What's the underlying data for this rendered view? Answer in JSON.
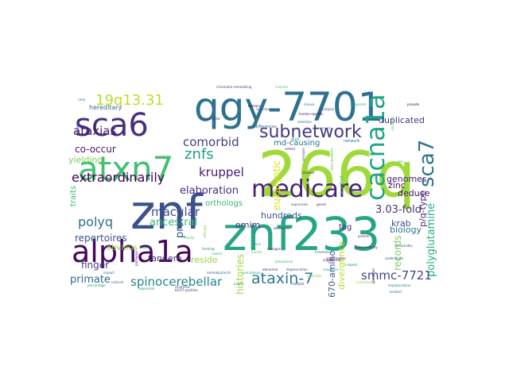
{
  "words": [
    {
      "text": "266q",
      "color": "#9fda3a",
      "rotate": 0
    },
    {
      "text": "znf",
      "color": "#3b518b",
      "rotate": 0
    },
    {
      "text": "znf233",
      "color": "#26a584",
      "rotate": 0
    },
    {
      "text": "qgy-7701",
      "color": "#2d718e",
      "rotate": 0
    },
    {
      "text": "atxn7",
      "color": "#43bf71",
      "rotate": 0
    },
    {
      "text": "alpha1a",
      "color": "#46075a",
      "rotate": 0
    },
    {
      "text": "sca6",
      "color": "#472f7d",
      "rotate": 0
    },
    {
      "text": "medicare",
      "color": "#482173",
      "rotate": 0
    },
    {
      "text": "cacna1a",
      "color": "#21a685",
      "rotate": 90
    },
    {
      "text": "sca7",
      "color": "#2c728e",
      "rotate": 90
    },
    {
      "text": "subnetwork",
      "color": "#443a83",
      "rotate": 0
    },
    {
      "text": "19q13.31",
      "color": "#bddf26",
      "rotate": 0
    },
    {
      "text": "znfs",
      "color": "#1f9e89",
      "rotate": 0
    },
    {
      "text": "extraordinarily",
      "color": "#440154",
      "rotate": 0
    },
    {
      "text": "ataxin-7",
      "color": "#2a788e",
      "rotate": 0
    },
    {
      "text": "polyq",
      "color": "#2c718e",
      "rotate": 0
    },
    {
      "text": "macular",
      "color": "#3e4c8a",
      "rotate": 0
    },
    {
      "text": "comorbid",
      "color": "#433e85",
      "rotate": 0
    },
    {
      "text": "kruppel",
      "color": "#481a6c",
      "rotate": 0
    },
    {
      "text": "ataxias",
      "color": "#48186a",
      "rotate": 0
    },
    {
      "text": "smmc-7721",
      "color": "#3e4989",
      "rotate": 0
    },
    {
      "text": "primate",
      "color": "#31688e",
      "rotate": 0
    },
    {
      "text": "spinocerebellar",
      "color": "#24868e",
      "rotate": 0
    },
    {
      "text": "repertoires",
      "color": "#3b528b",
      "rotate": 0
    },
    {
      "text": "elaboration",
      "color": "#482979",
      "rotate": 0
    },
    {
      "text": "omim",
      "color": "#472d7b",
      "rotate": 0
    },
    {
      "text": "3.03-fold",
      "color": "#46327e",
      "rotate": 0
    },
    {
      "text": "hundreds",
      "color": "#38588c",
      "rotate": 0
    },
    {
      "text": "ancestral",
      "color": "#3bbb75",
      "rotate": 0
    },
    {
      "text": "genomes",
      "color": "#482374",
      "rotate": 0
    },
    {
      "text": "deduce",
      "color": "#470e61",
      "rotate": 0
    },
    {
      "text": "krab",
      "color": "#3c4f8a",
      "rotate": 0
    },
    {
      "text": "zinc",
      "color": "#471164",
      "rotate": 0
    },
    {
      "text": "biology",
      "color": "#2a768e",
      "rotate": 0
    },
    {
      "text": "finger",
      "color": "#433d84",
      "rotate": 0
    },
    {
      "text": "tandem",
      "color": "#46307e",
      "rotate": 0
    },
    {
      "text": "reside",
      "color": "#98d83e",
      "rotate": 0
    },
    {
      "text": "polyglutamine",
      "color": "#25ac82",
      "rotate": 90
    },
    {
      "text": "records",
      "color": "#7ad151",
      "rotate": 90
    },
    {
      "text": "p/q-type",
      "color": "#482677",
      "rotate": 90
    },
    {
      "text": "histories",
      "color": "#9dd93b",
      "rotate": 90
    },
    {
      "text": "670-amino",
      "color": "#39568c",
      "rotate": 90
    },
    {
      "text": "prone",
      "color": "#3a548c",
      "rotate": 90
    },
    {
      "text": "eukaryotic",
      "color": "#dde318",
      "rotate": 90
    },
    {
      "text": "md-causing",
      "color": "#2d708e",
      "rotate": 0
    },
    {
      "text": "co-occur",
      "color": "#481467",
      "rotate": 0
    },
    {
      "text": "yielding",
      "color": "#75d054",
      "rotate": 0
    },
    {
      "text": "duplicated",
      "color": "#443983",
      "rotate": 0
    },
    {
      "text": "orthologs",
      "color": "#35b779",
      "rotate": 0
    },
    {
      "text": "obvious",
      "color": "#90d743",
      "rotate": 0
    },
    {
      "text": "hereditary",
      "color": "#31688e",
      "rotate": 0
    },
    {
      "text": "tag",
      "color": "#482475",
      "rotate": 0
    },
    {
      "text": "traits",
      "color": "#3dbc74",
      "rotate": 90
    },
    {
      "text": "divergence",
      "color": "#b5de2b",
      "rotate": 90
    },
    {
      "text": "chromatin-remodeling",
      "color": "#3e4a89",
      "rotate": 0
    },
    {
      "text": "channel",
      "color": "#56c667",
      "rotate": 0
    },
    {
      "text": "nucleotide",
      "color": "#443b84",
      "rotate": 0
    },
    {
      "text": "gli/s",
      "color": "#1fa088",
      "rotate": 0
    },
    {
      "text": "network",
      "color": "#2a778e",
      "rotate": 0
    },
    {
      "text": "degeneration",
      "color": "#3f4788",
      "rotate": 0
    },
    {
      "text": "sequence",
      "color": "#2ab07f",
      "rotate": 0
    },
    {
      "text": "abnormal",
      "color": "#482576",
      "rotate": 0
    },
    {
      "text": "patients",
      "color": "#277f8e",
      "rotate": 0
    },
    {
      "text": "evolutionary",
      "color": "#29af7f",
      "rotate": 0
    },
    {
      "text": "mouse",
      "color": "#2c738e",
      "rotate": 0
    },
    {
      "text": "human",
      "color": "#5ec962",
      "rotate": 0
    },
    {
      "text": "lineages",
      "color": "#453781",
      "rotate": 0
    },
    {
      "text": "calcium",
      "color": "#33638d",
      "rotate": 0
    },
    {
      "text": "expansion",
      "color": "#21918c",
      "rotate": 0
    },
    {
      "text": "clustered",
      "color": "#3f4889",
      "rotate": 0
    },
    {
      "text": "hepatocellular",
      "color": "#25848e",
      "rotate": 0
    },
    {
      "text": "organization",
      "color": "#472c7a",
      "rotate": 0
    },
    {
      "text": "multiple",
      "color": "#46337f",
      "rotate": 0
    },
    {
      "text": "consistently",
      "color": "#8bd646",
      "rotate": 0
    },
    {
      "text": "percentage",
      "color": "#1e9b8a",
      "rotate": 0
    },
    {
      "text": "expression",
      "color": "#3f4a8a",
      "rotate": 0
    },
    {
      "text": "genes",
      "color": "#482878",
      "rotate": 0
    },
    {
      "text": "prevalence",
      "color": "#35b779",
      "rotate": 0
    },
    {
      "text": "translation",
      "color": "#2d718e",
      "rotate": 0
    },
    {
      "text": "evolution",
      "color": "#81d34d",
      "rotate": 0
    },
    {
      "text": "carcinoma",
      "color": "#3c508b",
      "rotate": 0
    },
    {
      "text": "domain",
      "color": "#440356",
      "rotate": 0
    },
    {
      "text": "family",
      "color": "#4ac16d",
      "rotate": 0
    },
    {
      "text": "independently",
      "color": "#482172",
      "rotate": 0
    },
    {
      "text": "understand",
      "color": "#3a548c",
      "rotate": 0
    },
    {
      "text": "human-specific",
      "color": "#46085c",
      "rotate": 0
    },
    {
      "text": "selection",
      "color": "#2c738e",
      "rotate": 0
    },
    {
      "text": "suggesting",
      "color": "#481c6e",
      "rotate": 0
    },
    {
      "text": "cancer",
      "color": "#2ab07f",
      "rotate": 0
    },
    {
      "text": "analysis",
      "color": "#414487",
      "rotate": 0
    },
    {
      "text": "repeat",
      "color": "#23898e",
      "rotate": 0
    },
    {
      "text": "protein",
      "color": "#482979",
      "rotate": 0
    },
    {
      "text": "nonrandom",
      "color": "#5ec962",
      "rotate": 90
    },
    {
      "text": "remarkably",
      "color": "#34618d",
      "rotate": 0
    },
    {
      "text": "located",
      "color": "#2e6f8e",
      "rotate": 0
    },
    {
      "text": "provide",
      "color": "#440154",
      "rotate": 0
    },
    {
      "text": "normal",
      "color": "#3e4a89",
      "rotate": 0
    },
    {
      "text": "impact",
      "color": "#2f6b8e",
      "rotate": 0
    },
    {
      "text": "gene",
      "color": "#1fa287",
      "rotate": 0
    },
    {
      "text": "affected",
      "color": "#7ad151",
      "rotate": 90
    },
    {
      "text": "determine",
      "color": "#482475",
      "rotate": 0
    },
    {
      "text": "residues",
      "color": "#3c4f8a",
      "rotate": 90
    },
    {
      "text": "aspects",
      "color": "#22a785",
      "rotate": 0
    },
    {
      "text": "forming",
      "color": "#2a778e",
      "rotate": 0
    },
    {
      "text": "amplified",
      "color": "#44bf70",
      "rotate": 90
    },
    {
      "text": "pathways",
      "color": "#46337f",
      "rotate": 90
    },
    {
      "text": "rodent",
      "color": "#481f70",
      "rotate": 0
    },
    {
      "text": "differences",
      "color": "#306a8e",
      "rotate": 0
    },
    {
      "text": "conserved",
      "color": "#297a8e",
      "rotate": 0
    },
    {
      "text": "disease",
      "color": "#482071",
      "rotate": 0
    },
    {
      "text": "loci",
      "color": "#2cb17e",
      "rotate": 0
    },
    {
      "text": "b1/07-position",
      "color": "#443a83",
      "rotate": 0
    },
    {
      "text": "exons",
      "color": "#228c8d",
      "rotate": 0
    },
    {
      "text": "ratio",
      "color": "#26828e",
      "rotate": 0
    },
    {
      "text": "observed",
      "color": "#6ece58",
      "rotate": 90
    },
    {
      "text": "altered",
      "color": "#3b528b",
      "rotate": 90
    },
    {
      "text": "identified",
      "color": "#481b6d",
      "rotate": 90
    },
    {
      "text": "compared",
      "color": "#2fb47c",
      "rotate": 0
    }
  ]
}
